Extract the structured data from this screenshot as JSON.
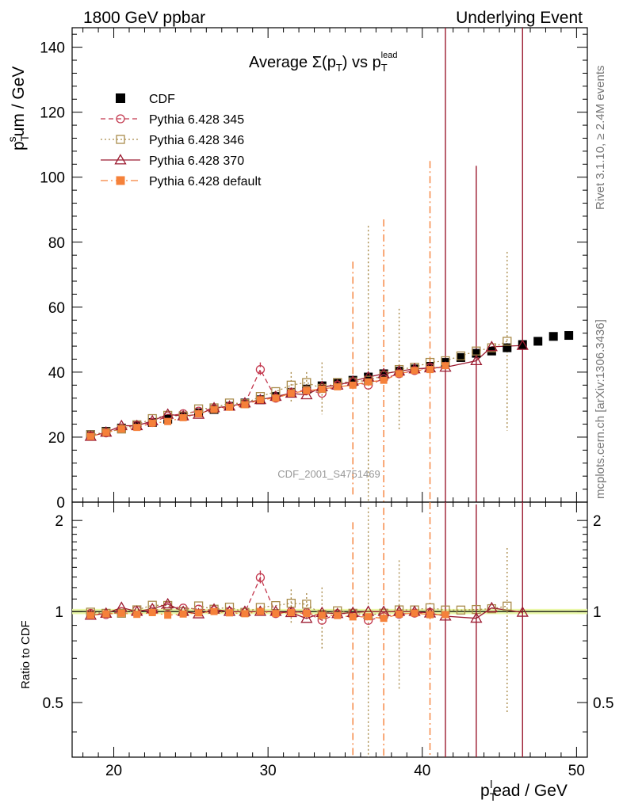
{
  "header": {
    "left_title": "1800 GeV ppbar",
    "right_title": "Underlying Event",
    "side_text_top": "Rivet 3.1.10, ≥ 2.4M events",
    "side_text_bottom": "mcplots.cern.ch [arXiv:1306.3436]",
    "watermark": "CDF_2001_S4751469"
  },
  "chart_data": {
    "type": "scatter",
    "title": "Average Σ(p_T) vs p_T^lead",
    "xlabel": "p_T^lead / GeV",
    "ylabel": "p_T^sum / GeV",
    "ratio_ylabel": "Ratio to CDF",
    "xlim": [
      17.3,
      50.7
    ],
    "ylim": [
      0,
      146
    ],
    "ratio_ylim": [
      0.33,
      2.3
    ],
    "x_ticks": [
      20,
      30,
      40,
      50
    ],
    "y_ticks": [
      0,
      20,
      40,
      60,
      80,
      100,
      120,
      140
    ],
    "ratio_ticks": [
      0.5,
      1,
      2
    ],
    "ratio_tick_labels": [
      "0.5",
      "1",
      "2"
    ],
    "legend": [
      "CDF",
      "Pythia 6.428 345",
      "Pythia 6.428 346",
      "Pythia 6.428 370",
      "Pythia 6.428 default"
    ],
    "legend_position": "top-left",
    "series": [
      {
        "name": "CDF",
        "color": "#000000",
        "marker": "filled-square",
        "line": "none",
        "x": [
          18.5,
          19.5,
          20.5,
          21.5,
          22.5,
          23.5,
          24.5,
          25.5,
          26.5,
          27.5,
          28.5,
          29.5,
          30.5,
          31.5,
          32.5,
          33.5,
          34.5,
          35.5,
          36.5,
          37.5,
          38.5,
          39.5,
          40.5,
          41.5,
          42.5,
          43.5,
          44.5,
          45.5,
          46.5,
          47.5,
          48.5,
          49.5
        ],
        "y": [
          20.8,
          21.8,
          22.8,
          23.5,
          24.5,
          25.5,
          26.5,
          27.5,
          28.5,
          29.5,
          30.5,
          31.5,
          32.5,
          33.8,
          34.8,
          35.8,
          36.6,
          37.5,
          38.5,
          39.5,
          40.3,
          41.0,
          41.8,
          43.0,
          44.5,
          45.8,
          46.5,
          47.5,
          48.5,
          49.5,
          51.0,
          51.3
        ]
      },
      {
        "name": "Pythia 6.428 345",
        "color": "#c3384e",
        "marker": "open-circle",
        "line": "dashed",
        "x": [
          18.5,
          19.5,
          20.5,
          21.5,
          22.5,
          23.5,
          24.5,
          25.5,
          26.5,
          27.5,
          28.5,
          29.5,
          30.5,
          31.5,
          32.5,
          33.5,
          34.5,
          35.5,
          36.5,
          37.5,
          38.5,
          39.5,
          40.5
        ],
        "y": [
          20.5,
          21.3,
          22.8,
          23.8,
          24.5,
          26.5,
          27.2,
          28.0,
          28.8,
          29.5,
          30.3,
          40.8,
          32.0,
          33.8,
          34.5,
          33.5,
          36.0,
          37.0,
          36.0,
          38.0,
          39.5,
          40.5,
          41.5
        ]
      },
      {
        "name": "Pythia 6.428 346",
        "color": "#a98b4b",
        "marker": "open-square",
        "line": "dotted",
        "x": [
          18.5,
          19.5,
          20.5,
          21.5,
          22.5,
          23.5,
          24.5,
          25.5,
          26.5,
          27.5,
          28.5,
          29.5,
          30.5,
          31.5,
          32.5,
          33.5,
          34.5,
          35.5,
          36.5,
          37.5,
          38.5,
          39.5,
          40.5,
          41.5,
          42.5,
          43.5,
          44.5,
          45.5
        ],
        "y": [
          20.7,
          21.5,
          22.5,
          23.8,
          25.7,
          26.7,
          26.5,
          28.7,
          29.0,
          30.5,
          30.3,
          32.5,
          34.0,
          36.0,
          36.8,
          35.0,
          36.8,
          37.0,
          37.5,
          39.0,
          40.8,
          41.5,
          43.0,
          43.5,
          45.0,
          46.5,
          47.5,
          49.5
        ]
      },
      {
        "name": "Pythia 6.428 370",
        "color": "#9b1b30",
        "marker": "open-triangle",
        "line": "solid",
        "x": [
          18.5,
          19.5,
          20.5,
          21.5,
          22.5,
          23.5,
          24.5,
          25.5,
          26.5,
          27.5,
          28.5,
          29.5,
          30.5,
          31.5,
          32.5,
          33.5,
          34.5,
          35.5,
          36.5,
          37.5,
          38.5,
          39.5,
          40.5,
          41.5,
          43.5,
          44.5,
          46.5
        ],
        "y": [
          20.2,
          21.5,
          23.5,
          23.5,
          25.0,
          27.0,
          26.5,
          27.0,
          29.0,
          29.5,
          30.5,
          31.5,
          32.5,
          33.5,
          33.0,
          35.5,
          36.0,
          37.2,
          38.5,
          39.5,
          40.3,
          41.0,
          41.3,
          41.5,
          43.5,
          47.8,
          48.2
        ]
      },
      {
        "name": "Pythia 6.428 default",
        "color": "#f5813a",
        "marker": "filled-square",
        "line": "dashdot",
        "x": [
          18.5,
          19.5,
          20.5,
          21.5,
          22.5,
          23.5,
          24.5,
          25.5,
          26.5,
          27.5,
          28.5,
          29.5,
          30.5,
          31.5,
          32.5,
          33.5,
          34.5,
          35.5,
          36.5,
          37.5,
          38.5,
          39.5,
          40.5,
          41.5
        ],
        "y": [
          20.2,
          21.4,
          22.5,
          23.0,
          24.3,
          24.8,
          26.0,
          27.2,
          28.5,
          29.2,
          30.0,
          31.5,
          32.0,
          33.5,
          34.3,
          34.8,
          35.5,
          36.0,
          37.0,
          37.5,
          39.5,
          40.5,
          40.8,
          42.0
        ]
      }
    ],
    "error_bars": [
      {
        "series": "Pythia 6.428 346",
        "x": 36.5,
        "low": 0,
        "high": 85
      },
      {
        "series": "Pythia 6.428 346",
        "x": 38.5,
        "low": 22,
        "high": 59.5
      },
      {
        "series": "Pythia 6.428 346",
        "x": 45.5,
        "low": 22,
        "high": 77
      },
      {
        "series": "Pythia 6.428 346",
        "x": 33.5,
        "low": 27,
        "high": 43
      },
      {
        "series": "Pythia 6.428 346",
        "x": 32.5,
        "low": 33,
        "high": 40
      },
      {
        "series": "Pythia 6.428 346",
        "x": 31.5,
        "low": 31,
        "high": 40
      },
      {
        "series": "Pythia 6.428 345",
        "x": 29.5,
        "low": 38.5,
        "high": 43
      },
      {
        "series": "Pythia 6.428 default",
        "x": 35.5,
        "low": 2,
        "high": 74
      },
      {
        "series": "Pythia 6.428 default",
        "x": 37.5,
        "low": 0,
        "high": 87
      },
      {
        "series": "Pythia 6.428 default",
        "x": 40.5,
        "low": 0,
        "high": 105
      },
      {
        "series": "Pythia 6.428 370",
        "x": 41.5,
        "low": 0,
        "high": 146
      },
      {
        "series": "Pythia 6.428 370",
        "x": 43.5,
        "low": 0,
        "high": 103.5
      },
      {
        "series": "Pythia 6.428 370",
        "x": 46.5,
        "low": 0,
        "high": 146
      }
    ]
  }
}
